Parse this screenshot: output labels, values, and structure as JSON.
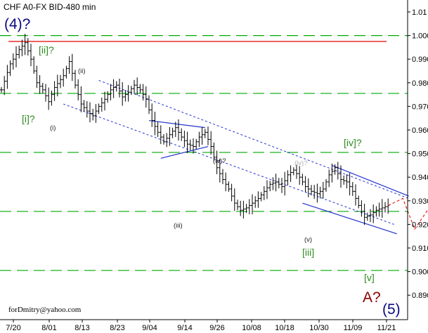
{
  "chart_data": {
    "type": "ohlc",
    "title": "CHF A0-FX BID-480 min",
    "signature": "forDmitry@yahoo.com",
    "y_range": [
      0.881,
      1.015
    ],
    "y_ticks": [
      {
        "v": 1.01,
        "label": "1.01"
      },
      {
        "v": 1.0,
        "label": "1.000"
      },
      {
        "v": 0.99,
        "label": "0.990"
      },
      {
        "v": 0.98,
        "label": "0.980"
      },
      {
        "v": 0.97,
        "label": "0.970"
      },
      {
        "v": 0.96,
        "label": "0.960"
      },
      {
        "v": 0.95,
        "label": "0.950"
      },
      {
        "v": 0.94,
        "label": "0.940"
      },
      {
        "v": 0.93,
        "label": "0.930"
      },
      {
        "v": 0.92,
        "label": "0.920"
      },
      {
        "v": 0.91,
        "label": "0.910"
      },
      {
        "v": 0.9,
        "label": "0.900"
      },
      {
        "v": 0.89,
        "label": "0.890"
      }
    ],
    "x_ticks": [
      "7/20",
      "8/01",
      "8/13",
      "8/23",
      "9/04",
      "9/14",
      "9/26",
      "10/08",
      "10/18",
      "10/30",
      "11/09",
      "11/21"
    ],
    "levels": [
      {
        "value": 1.0,
        "color": "#00aa00",
        "style": "dashed"
      },
      {
        "value": 0.9975,
        "color": "#e00000",
        "style": "solid"
      },
      {
        "value": 0.9755,
        "color": "#00aa00",
        "style": "dashed"
      },
      {
        "value": 0.9505,
        "color": "#00aa00",
        "style": "dashed"
      },
      {
        "value": 0.9255,
        "color": "#00aa00",
        "style": "dashed"
      },
      {
        "value": 0.9005,
        "color": "#00aa00",
        "style": "dashed"
      }
    ],
    "price_path": [
      [
        0,
        0.977
      ],
      [
        3,
        0.988
      ],
      [
        6,
        0.994
      ],
      [
        8,
        0.997
      ],
      [
        10,
        0.99
      ],
      [
        12,
        0.98
      ],
      [
        14,
        0.977
      ],
      [
        16,
        0.972
      ],
      [
        18,
        0.978
      ],
      [
        21,
        0.983
      ],
      [
        23,
        0.989
      ],
      [
        25,
        0.979
      ],
      [
        27,
        0.971
      ],
      [
        29,
        0.968
      ],
      [
        31,
        0.966
      ],
      [
        33,
        0.97
      ],
      [
        35,
        0.973
      ],
      [
        37,
        0.977
      ],
      [
        39,
        0.979
      ],
      [
        41,
        0.974
      ],
      [
        43,
        0.976
      ],
      [
        45,
        0.979
      ],
      [
        47,
        0.977
      ],
      [
        49,
        0.973
      ],
      [
        51,
        0.964
      ],
      [
        53,
        0.959
      ],
      [
        55,
        0.955
      ],
      [
        57,
        0.958
      ],
      [
        59,
        0.961
      ],
      [
        61,
        0.957
      ],
      [
        63,
        0.954
      ],
      [
        65,
        0.953
      ],
      [
        67,
        0.957
      ],
      [
        69,
        0.959
      ],
      [
        71,
        0.953
      ],
      [
        73,
        0.944
      ],
      [
        75,
        0.939
      ],
      [
        77,
        0.935
      ],
      [
        79,
        0.929
      ],
      [
        81,
        0.926
      ],
      [
        83,
        0.927
      ],
      [
        85,
        0.929
      ],
      [
        87,
        0.931
      ],
      [
        89,
        0.934
      ],
      [
        91,
        0.937
      ],
      [
        93,
        0.938
      ],
      [
        95,
        0.936
      ],
      [
        97,
        0.941
      ],
      [
        99,
        0.943
      ],
      [
        101,
        0.94
      ],
      [
        103,
        0.936
      ],
      [
        105,
        0.934
      ],
      [
        107,
        0.933
      ],
      [
        109,
        0.935
      ],
      [
        111,
        0.941
      ],
      [
        113,
        0.944
      ],
      [
        115,
        0.939
      ],
      [
        117,
        0.938
      ],
      [
        119,
        0.934
      ],
      [
        121,
        0.928
      ],
      [
        123,
        0.923
      ],
      [
        125,
        0.924
      ],
      [
        127,
        0.926
      ],
      [
        129,
        0.927
      ],
      [
        131,
        0.928
      ]
    ],
    "forecast_path": [
      {
        "d": 131,
        "v": 0.928
      },
      {
        "d": 136,
        "v": 0.931
      },
      {
        "d": 140,
        "v": 0.918
      },
      {
        "d": 146,
        "v": 0.929
      },
      {
        "d": 154,
        "v": 0.943
      }
    ],
    "channel": {
      "upper": [
        {
          "d": 33,
          "v": 0.981
        },
        {
          "d": 138,
          "v": 0.931
        }
      ],
      "lower": [
        {
          "d": 21,
          "v": 0.971
        },
        {
          "d": 133,
          "v": 0.92
        }
      ]
    },
    "blue_lines": [
      {
        "p1": {
          "d": 50,
          "v": 0.964
        },
        "p2": {
          "d": 69,
          "v": 0.961
        }
      },
      {
        "p1": {
          "d": 54,
          "v": 0.948
        },
        "p2": {
          "d": 70,
          "v": 0.953
        }
      },
      {
        "p1": {
          "d": 112,
          "v": 0.945
        },
        "p2": {
          "d": 138,
          "v": 0.932
        }
      },
      {
        "p1": {
          "d": 102,
          "v": 0.929
        },
        "p2": {
          "d": 134,
          "v": 0.916
        }
      }
    ],
    "wave_labels": [
      {
        "text": "(4)?",
        "color": "#0a0a80",
        "size": "xl"
      },
      {
        "text": "(5)",
        "color": "#0a0a80",
        "size": "xl"
      },
      {
        "text": "A?",
        "color": "#8b0000",
        "size": "xl"
      },
      {
        "text": "[ii]?",
        "color": "#2e8b1f",
        "size": "l"
      },
      {
        "text": "[i]?",
        "color": "#2e8b1f",
        "size": "l"
      },
      {
        "text": "[iv]?",
        "color": "#2e8b1f",
        "size": "l"
      },
      {
        "text": "[iii]",
        "color": "#2e8b1f",
        "size": "l"
      },
      {
        "text": "[v]",
        "color": "#2e8b1f",
        "size": "l"
      },
      {
        "text": "(ii)",
        "color": "#222222",
        "size": "s"
      },
      {
        "text": "(i)",
        "color": "#222222",
        "size": "s"
      },
      {
        "text": "(iii)",
        "color": "#222222",
        "size": "s"
      },
      {
        "text": "(iv)?",
        "color": "#222222",
        "size": "s"
      },
      {
        "text": "(iv)?",
        "color": "#b0b0b0",
        "size": "s"
      },
      {
        "text": "(v)",
        "color": "#222222",
        "size": "s"
      }
    ]
  }
}
